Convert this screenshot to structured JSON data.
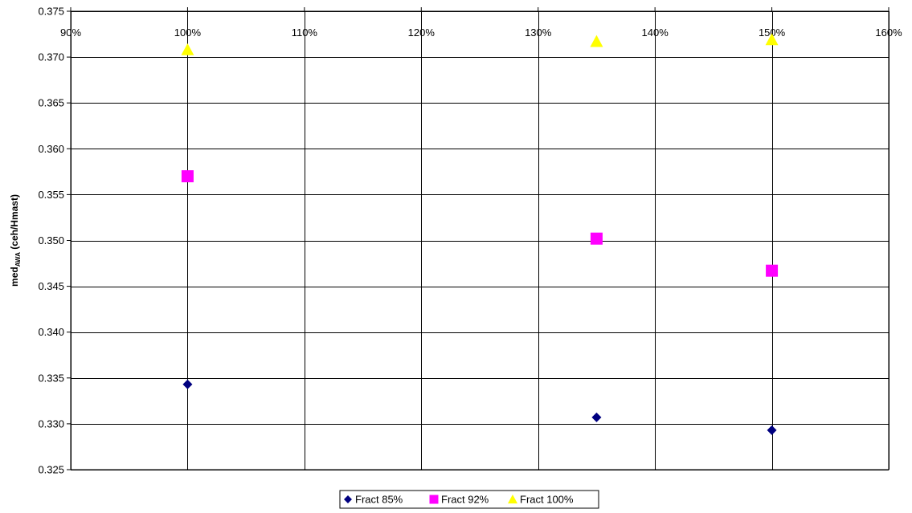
{
  "chart_data": {
    "type": "scatter",
    "title": "",
    "xlabel": "",
    "ylabel": {
      "main": "med",
      "subscript": "AWA",
      "suffix": " (ceh/Hmast)"
    },
    "xlim": [
      90,
      160
    ],
    "ylim": [
      0.325,
      0.375
    ],
    "x_ticks": [
      90,
      100,
      110,
      120,
      130,
      140,
      150,
      160
    ],
    "x_tick_labels": [
      "90%",
      "100%",
      "110%",
      "120%",
      "130%",
      "140%",
      "150%",
      "160%"
    ],
    "y_ticks": [
      0.325,
      0.33,
      0.335,
      0.34,
      0.345,
      0.35,
      0.355,
      0.36,
      0.365,
      0.37,
      0.375
    ],
    "y_tick_labels": [
      "0.325",
      "0.330",
      "0.335",
      "0.340",
      "0.345",
      "0.350",
      "0.355",
      "0.360",
      "0.365",
      "0.370",
      "0.375"
    ],
    "x_axis_position": "top",
    "grid": true,
    "legend_position": "bottom",
    "series": [
      {
        "name": "Fract 85%",
        "marker": "diamond",
        "color": "#000080",
        "points": [
          [
            100,
            0.3343
          ],
          [
            135,
            0.3307
          ],
          [
            150,
            0.3293
          ]
        ]
      },
      {
        "name": "Fract 92%",
        "marker": "square",
        "color": "#ff00ff",
        "points": [
          [
            100,
            0.357
          ],
          [
            135,
            0.3502
          ],
          [
            150,
            0.3467
          ]
        ]
      },
      {
        "name": "Fract 100%",
        "marker": "triangle",
        "color": "#ffff00",
        "points": [
          [
            100,
            0.3708
          ],
          [
            135,
            0.3717
          ],
          [
            150,
            0.3719
          ]
        ]
      }
    ]
  }
}
